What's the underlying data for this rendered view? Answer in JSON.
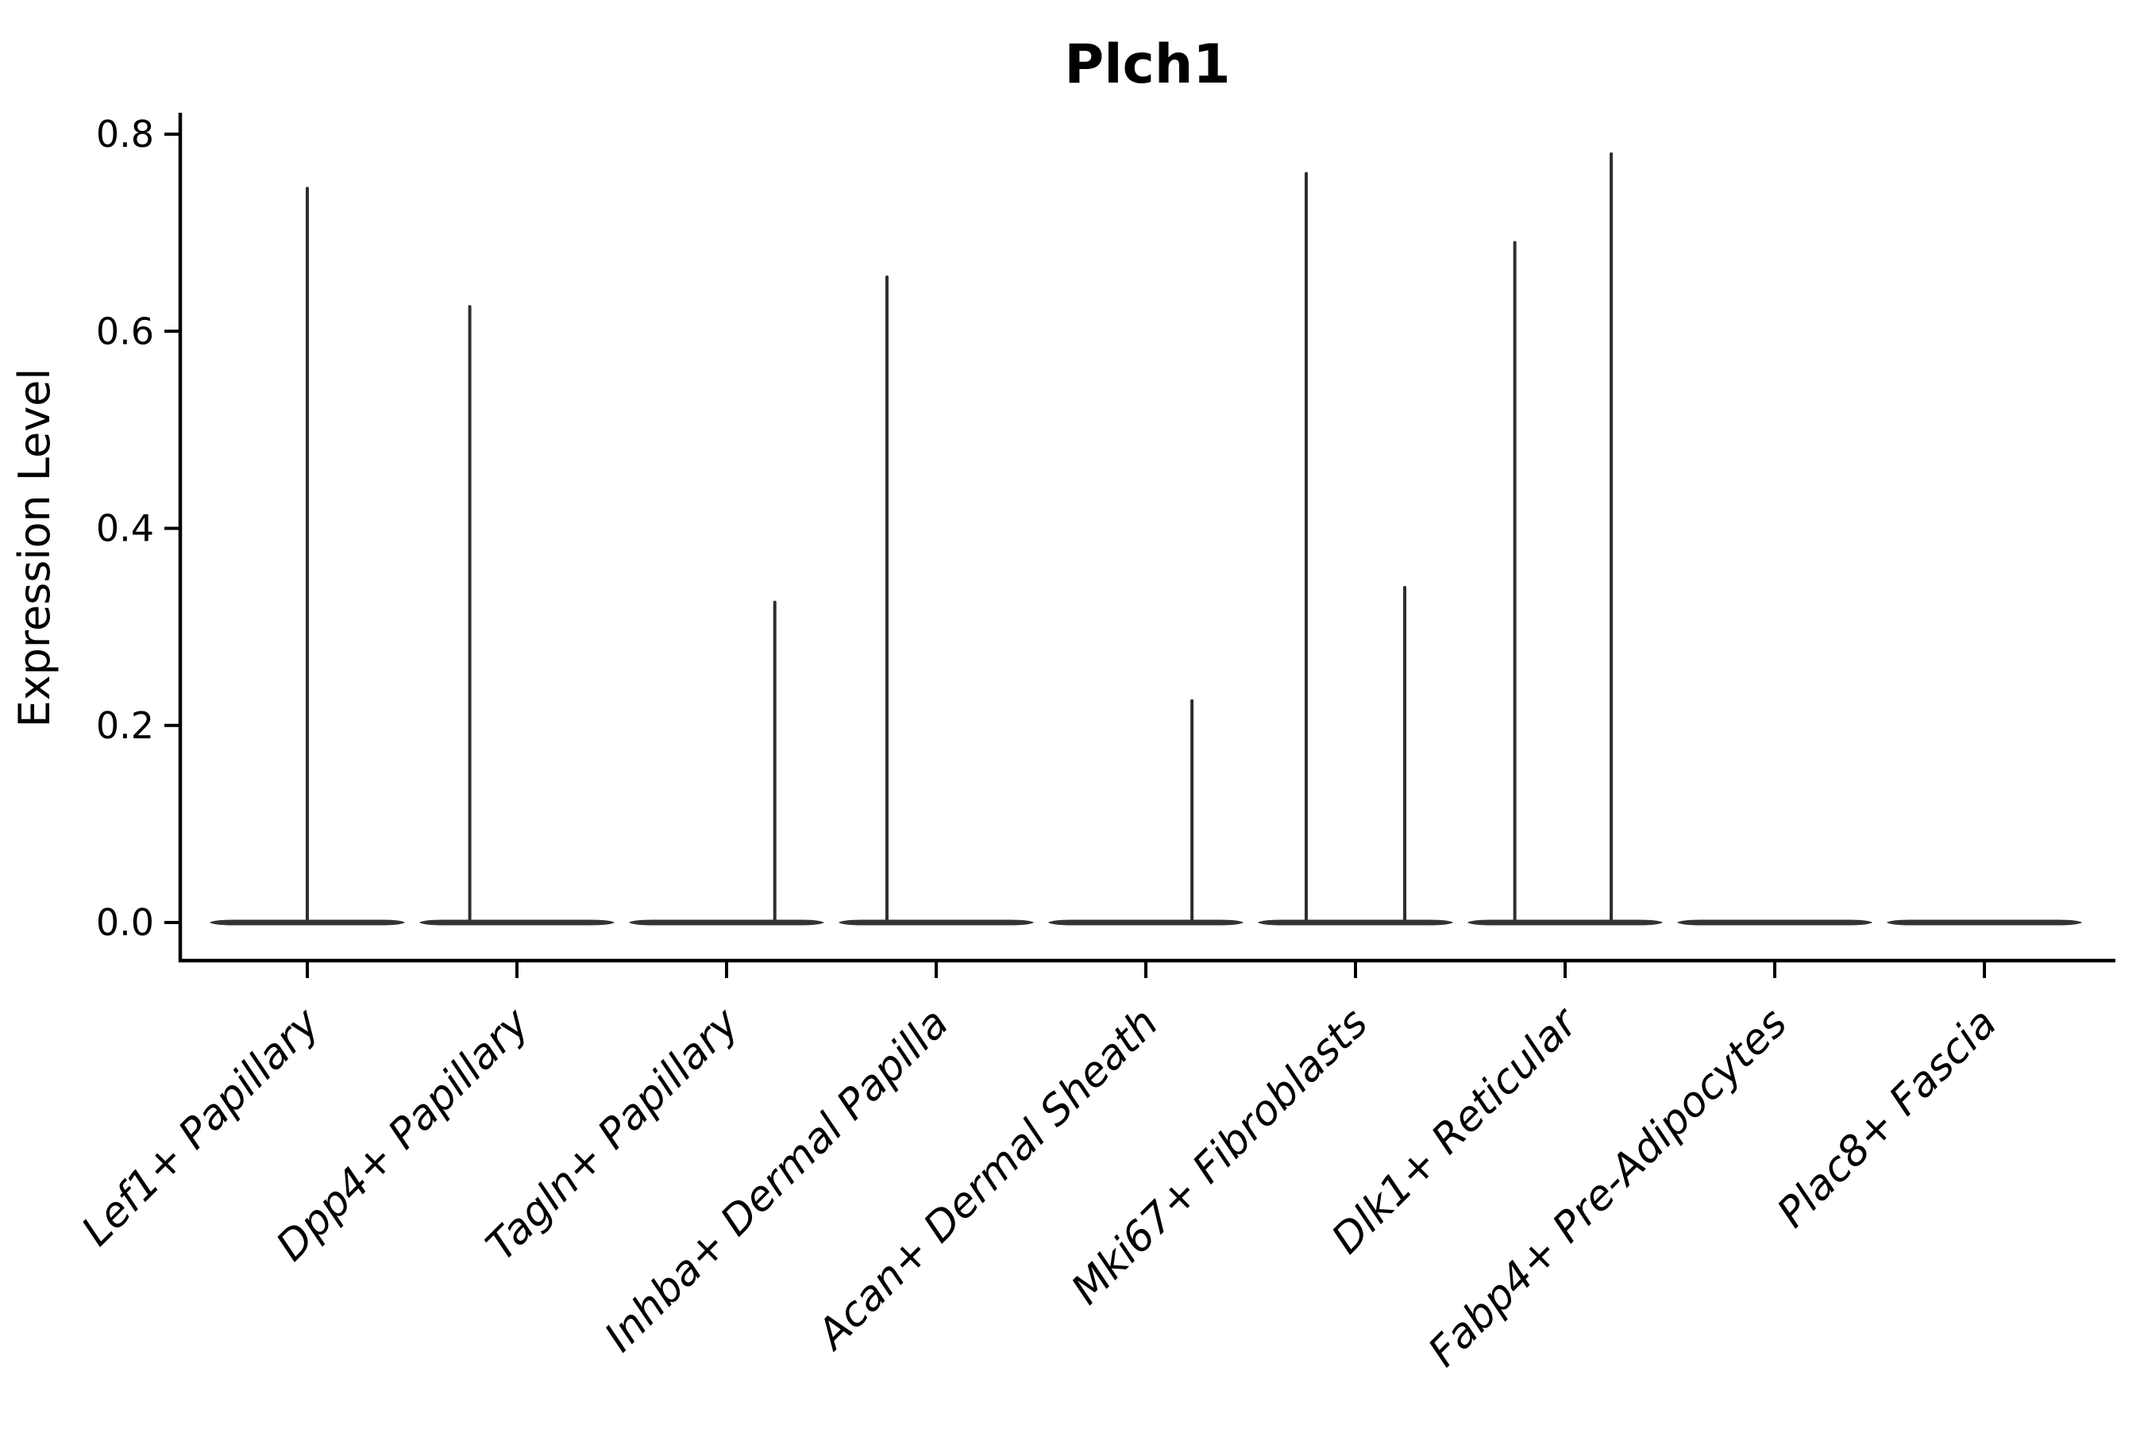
{
  "figure": {
    "title": "Plch1"
  },
  "chart_data": {
    "type": "violin",
    "title": "Plch1",
    "xlabel": "",
    "ylabel": "Expression Level",
    "ylim": [
      0,
      0.8
    ],
    "yticks": [
      0,
      0.2,
      0.4,
      0.6,
      0.8
    ],
    "ytick_labels": [
      "0.0",
      "0.2",
      "0.4",
      "0.6",
      "0.8"
    ],
    "categories": [
      "Lef1+ Papillary",
      "Dpp4+ Papillary",
      "Tagln+ Papillary",
      "Inhba+ Dermal Papilla",
      "Acan+ Dermal Sheath",
      "Mki67+ Fibroblasts",
      "Dlk1+ Reticular",
      "Fabp4+ Pre-Adipocytes",
      "Plac8+ Fascia"
    ],
    "violins": [
      {
        "category": "Lef1+ Papillary",
        "baseline": 0,
        "spikes": [
          {
            "offset_frac": 0.0,
            "peak": 0.745
          }
        ]
      },
      {
        "category": "Dpp4+ Papillary",
        "baseline": 0,
        "spikes": [
          {
            "offset_frac": -0.225,
            "peak": 0.625
          }
        ]
      },
      {
        "category": "Tagln+ Papillary",
        "baseline": 0,
        "spikes": [
          {
            "offset_frac": 0.23,
            "peak": 0.325
          }
        ]
      },
      {
        "category": "Inhba+ Dermal Papilla",
        "baseline": 0,
        "spikes": [
          {
            "offset_frac": -0.235,
            "peak": 0.655
          }
        ]
      },
      {
        "category": "Acan+ Dermal Sheath",
        "baseline": 0,
        "spikes": [
          {
            "offset_frac": 0.22,
            "peak": 0.225
          }
        ]
      },
      {
        "category": "Mki67+ Fibroblasts",
        "baseline": 0,
        "spikes": [
          {
            "offset_frac": -0.235,
            "peak": 0.76
          },
          {
            "offset_frac": 0.235,
            "peak": 0.34
          }
        ]
      },
      {
        "category": "Dlk1+ Reticular",
        "baseline": 0,
        "spikes": [
          {
            "offset_frac": -0.24,
            "peak": 0.69
          },
          {
            "offset_frac": 0.22,
            "peak": 0.78
          }
        ]
      },
      {
        "category": "Fabp4+ Pre-Adipocytes",
        "baseline": 0,
        "spikes": []
      },
      {
        "category": "Plac8+ Fascia",
        "baseline": 0,
        "spikes": []
      }
    ],
    "legend": "none",
    "grid": "off",
    "x_tick_label_style": "italic, rotated 45 degrees, right-anchored",
    "colors": {
      "violin": "#333333",
      "spike": "#2e2e2e",
      "axis": "#000000",
      "text": "#000000",
      "background": "#ffffff"
    }
  }
}
